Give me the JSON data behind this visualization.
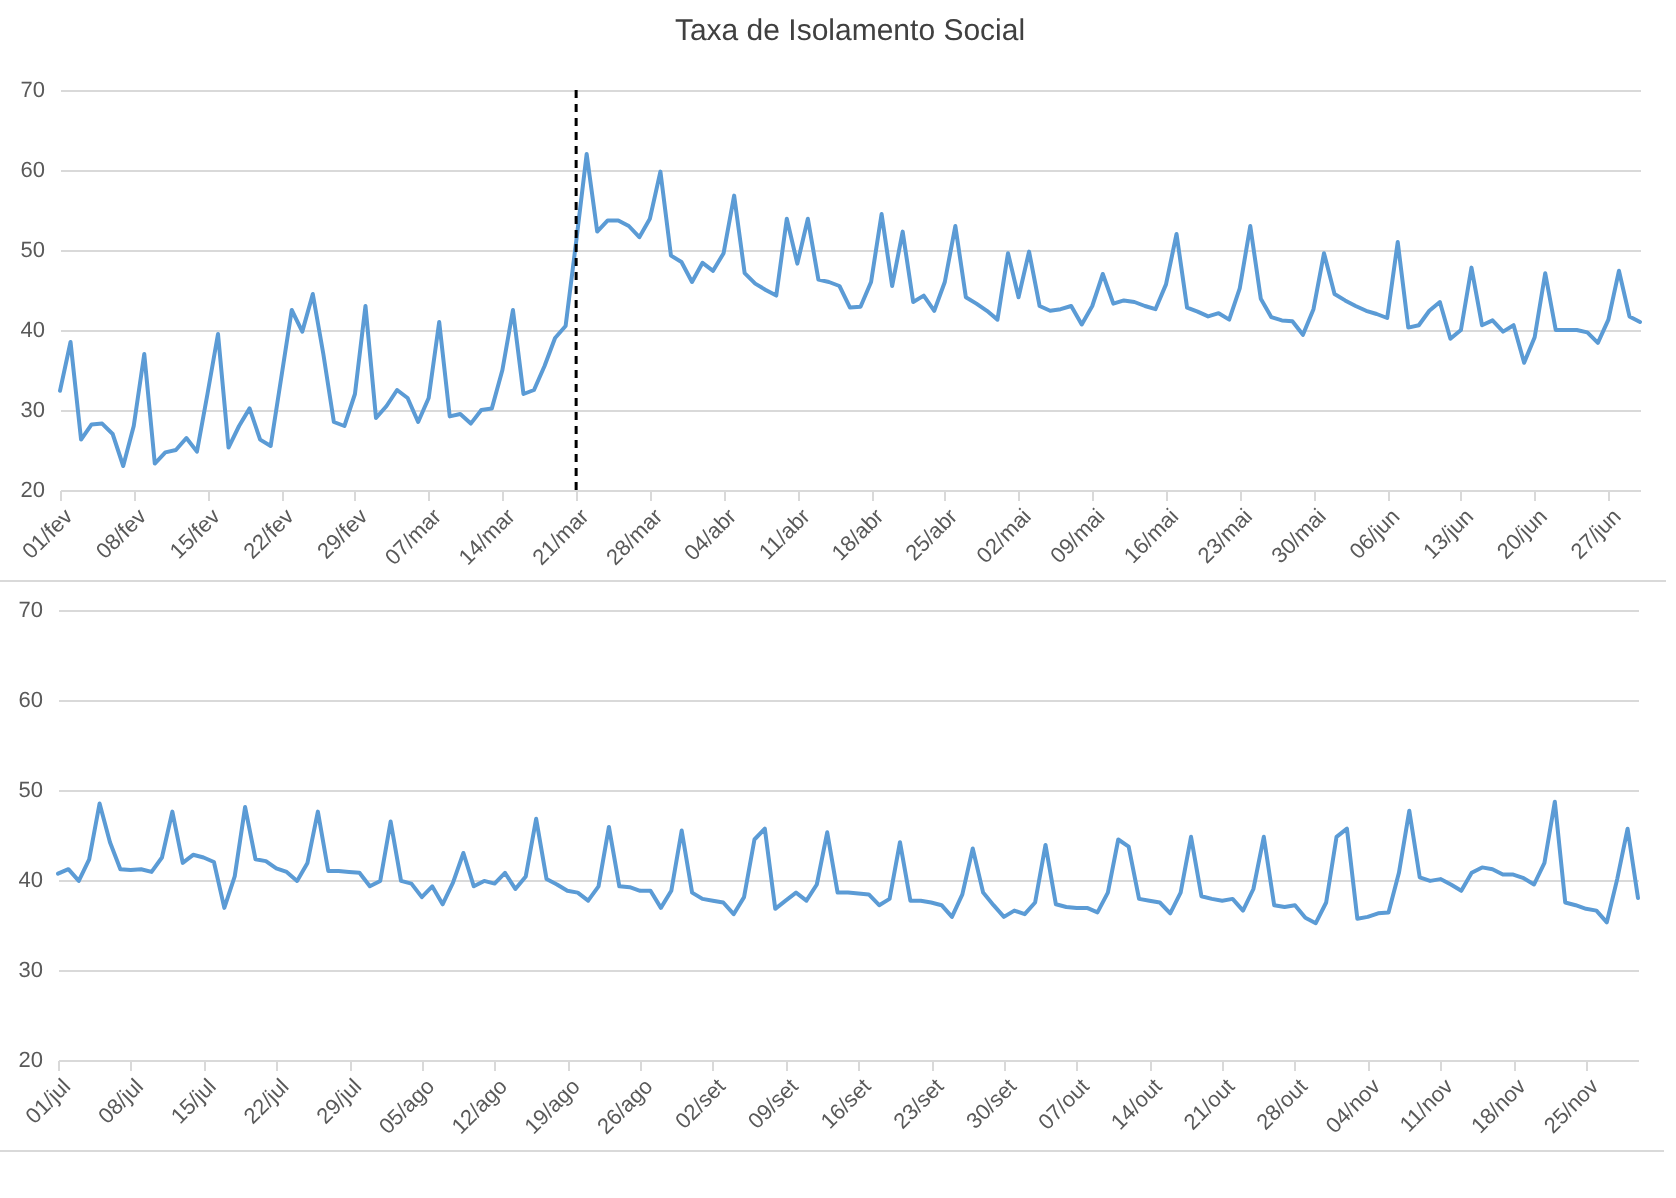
{
  "chart_data": [
    {
      "type": "line",
      "title": "Taxa de Isolamento Social",
      "x": [
        "--02-01",
        "--02-02",
        "--02-03",
        "--02-04",
        "--02-05",
        "--02-06",
        "--02-07",
        "--02-08",
        "--02-09",
        "--02-10",
        "--02-11",
        "--02-12",
        "--02-13",
        "--02-14",
        "--02-15",
        "--02-16",
        "--02-17",
        "--02-18",
        "--02-19",
        "--02-20",
        "--02-21",
        "--02-22",
        "--02-23",
        "--02-24",
        "--02-25",
        "--02-26",
        "--02-27",
        "--02-28",
        "--02-29",
        "--03-01",
        "--03-02",
        "--03-03",
        "--03-04",
        "--03-05",
        "--03-06",
        "--03-07",
        "--03-08",
        "--03-09",
        "--03-10",
        "--03-11",
        "--03-12",
        "--03-13",
        "--03-14",
        "--03-15",
        "--03-16",
        "--03-17",
        "--03-18",
        "--03-19",
        "--03-20",
        "--03-21",
        "--03-22",
        "--03-23",
        "--03-24",
        "--03-25",
        "--03-26",
        "--03-27",
        "--03-28",
        "--03-29",
        "--03-30",
        "--03-31",
        "--04-01",
        "--04-02",
        "--04-03",
        "--04-04",
        "--04-05",
        "--04-06",
        "--04-07",
        "--04-08",
        "--04-09",
        "--04-10",
        "--04-11",
        "--04-12",
        "--04-13",
        "--04-14",
        "--04-15",
        "--04-16",
        "--04-17",
        "--04-18",
        "--04-19",
        "--04-20",
        "--04-21",
        "--04-22",
        "--04-23",
        "--04-24",
        "--04-25",
        "--04-26",
        "--04-27",
        "--04-28",
        "--04-29",
        "--04-30",
        "--05-01",
        "--05-02",
        "--05-03",
        "--05-04",
        "--05-05",
        "--05-06",
        "--05-07",
        "--05-08",
        "--05-09",
        "--05-10",
        "--05-11",
        "--05-12",
        "--05-13",
        "--05-14",
        "--05-15",
        "--05-16",
        "--05-17",
        "--05-18",
        "--05-19",
        "--05-20",
        "--05-21",
        "--05-22",
        "--05-23",
        "--05-24",
        "--05-25",
        "--05-26",
        "--05-27",
        "--05-28",
        "--05-29",
        "--05-30",
        "--05-31",
        "--06-01",
        "--06-02",
        "--06-03",
        "--06-04",
        "--06-05",
        "--06-06",
        "--06-07",
        "--06-08",
        "--06-09",
        "--06-10",
        "--06-11",
        "--06-12",
        "--06-13",
        "--06-14",
        "--06-15",
        "--06-16",
        "--06-17",
        "--06-18",
        "--06-19",
        "--06-20",
        "--06-21",
        "--06-22",
        "--06-23",
        "--06-24",
        "--06-25",
        "--06-26",
        "--06-27",
        "--06-28",
        "--06-29",
        "--06-30"
      ],
      "series": [
        {
          "color": "#5b9bd5",
          "values": [
            32.4,
            38.5,
            26.3,
            28.2,
            28.3,
            27,
            23,
            28,
            37,
            23.3,
            24.7,
            25,
            26.5,
            24.8,
            32,
            39.5,
            25.3,
            28,
            30.2,
            26.3,
            25.5,
            34,
            42.5,
            39.8,
            44.5,
            37,
            28.5,
            28,
            32,
            43,
            29,
            30.5,
            32.5,
            31.5,
            28.5,
            31.5,
            41,
            29.2,
            29.5,
            28.3,
            30,
            30.2,
            35,
            42.5,
            32,
            32.5,
            35.5,
            39,
            40.5,
            51,
            62,
            52.3,
            53.7,
            53.7,
            53,
            51.6,
            53.9,
            59.8,
            49.3,
            48.5,
            46,
            48.4,
            47.4,
            49.6,
            56.8,
            47.1,
            45.8,
            45,
            44.3,
            53.9,
            48.3,
            53.9,
            46.3,
            46,
            45.5,
            42.8,
            42.9,
            46,
            54.5,
            45.5,
            52.3,
            43.5,
            44.3,
            42.4,
            46,
            53,
            44.1,
            43.3,
            42.4,
            41.3,
            49.6,
            44.1,
            49.8,
            43,
            42.4,
            42.6,
            43,
            40.7,
            43,
            47,
            43.3,
            43.7,
            43.5,
            43,
            42.6,
            45.7,
            52,
            42.8,
            42.3,
            41.7,
            42.1,
            41.3,
            45.2,
            53,
            43.9,
            41.6,
            41.2,
            41.1,
            39.4,
            42.6,
            49.6,
            44.5,
            43.7,
            43,
            42.4,
            42,
            41.5,
            51,
            40.3,
            40.6,
            42.4,
            43.5,
            38.9,
            40,
            47.8,
            40.6,
            41.2,
            39.8,
            40.6,
            35.9,
            39.1,
            47.1,
            40,
            40,
            40,
            39.7,
            38.4,
            41.3,
            47.4,
            41.7,
            41
          ]
        }
      ],
      "xlim": [
        "--02-01",
        "--06-30"
      ],
      "xticks": [
        {
          "value": "--02-01",
          "label": "01/fev"
        },
        {
          "value": "--02-08",
          "label": "08/fev"
        },
        {
          "value": "--02-15",
          "label": "15/fev"
        },
        {
          "value": "--02-22",
          "label": "22/fev"
        },
        {
          "value": "--02-29",
          "label": "29/fev"
        },
        {
          "value": "--03-07",
          "label": "07/mar"
        },
        {
          "value": "--03-14",
          "label": "14/mar"
        },
        {
          "value": "--03-21",
          "label": "21/mar"
        },
        {
          "value": "--03-28",
          "label": "28/mar"
        },
        {
          "value": "--04-04",
          "label": "04/abr"
        },
        {
          "value": "--04-11",
          "label": "11/abr"
        },
        {
          "value": "--04-18",
          "label": "18/abr"
        },
        {
          "value": "--04-25",
          "label": "25/abr"
        },
        {
          "value": "--05-02",
          "label": "02/mai"
        },
        {
          "value": "--05-09",
          "label": "09/mai"
        },
        {
          "value": "--05-16",
          "label": "16/mai"
        },
        {
          "value": "--05-23",
          "label": "23/mai"
        },
        {
          "value": "--05-30",
          "label": "30/mai"
        },
        {
          "value": "--06-06",
          "label": "06/jun"
        },
        {
          "value": "--06-13",
          "label": "13/jun"
        },
        {
          "value": "--06-20",
          "label": "20/jun"
        },
        {
          "value": "--06-27",
          "label": "27/jun"
        }
      ],
      "ylim": [
        20,
        70
      ],
      "yticks": [
        20,
        30,
        40,
        50,
        60,
        70
      ],
      "grid": "y",
      "ref_lines": [
        {
          "axis": "x",
          "value": "--03-21",
          "color": "#000000",
          "line_style": "dashed"
        }
      ]
    },
    {
      "type": "line",
      "x": [
        "--07-01",
        "--07-02",
        "--07-03",
        "--07-04",
        "--07-05",
        "--07-06",
        "--07-07",
        "--07-08",
        "--07-09",
        "--07-10",
        "--07-11",
        "--07-12",
        "--07-13",
        "--07-14",
        "--07-15",
        "--07-16",
        "--07-17",
        "--07-18",
        "--07-19",
        "--07-20",
        "--07-21",
        "--07-22",
        "--07-23",
        "--07-24",
        "--07-25",
        "--07-26",
        "--07-27",
        "--07-28",
        "--07-29",
        "--07-30",
        "--07-31",
        "--08-01",
        "--08-02",
        "--08-03",
        "--08-04",
        "--08-05",
        "--08-06",
        "--08-07",
        "--08-08",
        "--08-09",
        "--08-10",
        "--08-11",
        "--08-12",
        "--08-13",
        "--08-14",
        "--08-15",
        "--08-16",
        "--08-17",
        "--08-18",
        "--08-19",
        "--08-20",
        "--08-21",
        "--08-22",
        "--08-23",
        "--08-24",
        "--08-25",
        "--08-26",
        "--08-27",
        "--08-28",
        "--08-29",
        "--08-30",
        "--08-31",
        "--09-01",
        "--09-02",
        "--09-03",
        "--09-04",
        "--09-05",
        "--09-06",
        "--09-07",
        "--09-08",
        "--09-09",
        "--09-10",
        "--09-11",
        "--09-12",
        "--09-13",
        "--09-14",
        "--09-15",
        "--09-16",
        "--09-17",
        "--09-18",
        "--09-19",
        "--09-20",
        "--09-21",
        "--09-22",
        "--09-23",
        "--09-24",
        "--09-25",
        "--09-26",
        "--09-27",
        "--09-28",
        "--09-29",
        "--09-30",
        "--10-01",
        "--10-02",
        "--10-03",
        "--10-04",
        "--10-05",
        "--10-06",
        "--10-07",
        "--10-08",
        "--10-09",
        "--10-10",
        "--10-11",
        "--10-12",
        "--10-13",
        "--10-14",
        "--10-15",
        "--10-16",
        "--10-17",
        "--10-18",
        "--10-19",
        "--10-20",
        "--10-21",
        "--10-22",
        "--10-23",
        "--10-24",
        "--10-25",
        "--10-26",
        "--10-27",
        "--10-28",
        "--10-29",
        "--10-30",
        "--10-31",
        "--11-01",
        "--11-02",
        "--11-03",
        "--11-04",
        "--11-05",
        "--11-06",
        "--11-07",
        "--11-08",
        "--11-09",
        "--11-10",
        "--11-11",
        "--11-12",
        "--11-13",
        "--11-14",
        "--11-15",
        "--11-16",
        "--11-17",
        "--11-18",
        "--11-19",
        "--11-20",
        "--11-21",
        "--11-22",
        "--11-23",
        "--11-24",
        "--11-25",
        "--11-26",
        "--11-27",
        "--11-28",
        "--11-29",
        "--11-30"
      ],
      "series": [
        {
          "color": "#5b9bd5",
          "values": [
            40.7,
            41.2,
            39.9,
            42.3,
            48.5,
            44.2,
            41.2,
            41.1,
            41.2,
            40.9,
            42.5,
            47.6,
            41.9,
            42.8,
            42.5,
            42,
            36.9,
            40.4,
            48.1,
            42.3,
            42.1,
            41.3,
            40.9,
            39.9,
            41.9,
            47.6,
            41,
            41,
            40.9,
            40.8,
            39.3,
            39.9,
            46.5,
            39.9,
            39.6,
            38.1,
            39.3,
            37.3,
            39.7,
            43,
            39.3,
            39.9,
            39.6,
            40.8,
            39,
            40.4,
            46.8,
            40.1,
            39.5,
            38.8,
            38.6,
            37.7,
            39.3,
            45.9,
            39.3,
            39.2,
            38.8,
            38.8,
            36.9,
            38.8,
            45.5,
            38.6,
            37.9,
            37.7,
            37.5,
            36.2,
            38.1,
            44.5,
            45.7,
            36.8,
            37.7,
            38.6,
            37.7,
            39.5,
            45.3,
            38.6,
            38.6,
            38.5,
            38.4,
            37.2,
            37.9,
            44.2,
            37.7,
            37.7,
            37.5,
            37.2,
            35.9,
            38.4,
            43.5,
            38.6,
            37.2,
            35.9,
            36.6,
            36.2,
            37.5,
            43.9,
            37.3,
            37,
            36.9,
            36.9,
            36.4,
            38.6,
            44.5,
            43.7,
            37.9,
            37.7,
            37.5,
            36.3,
            38.6,
            44.8,
            38.2,
            37.9,
            37.7,
            37.9,
            36.6,
            39,
            44.8,
            37.2,
            37,
            37.2,
            35.8,
            35.2,
            37.5,
            44.8,
            45.7,
            35.7,
            35.9,
            36.3,
            36.4,
            40.8,
            47.7,
            40.3,
            39.9,
            40.1,
            39.5,
            38.8,
            40.8,
            41.4,
            41.2,
            40.6,
            40.6,
            40.2,
            39.5,
            41.9,
            48.7,
            37.5,
            37.2,
            36.8,
            36.6,
            35.3,
            40.1,
            45.7,
            38
          ]
        }
      ],
      "xlim": [
        "--07-01",
        "--11-30"
      ],
      "xticks": [
        {
          "value": "--07-01",
          "label": "01/jul"
        },
        {
          "value": "--07-08",
          "label": "08/jul"
        },
        {
          "value": "--07-15",
          "label": "15/jul"
        },
        {
          "value": "--07-22",
          "label": "22/jul"
        },
        {
          "value": "--07-29",
          "label": "29/jul"
        },
        {
          "value": "--08-05",
          "label": "05/ago"
        },
        {
          "value": "--08-12",
          "label": "12/ago"
        },
        {
          "value": "--08-19",
          "label": "19/ago"
        },
        {
          "value": "--08-26",
          "label": "26/ago"
        },
        {
          "value": "--09-02",
          "label": "02/set"
        },
        {
          "value": "--09-09",
          "label": "09/set"
        },
        {
          "value": "--09-16",
          "label": "16/set"
        },
        {
          "value": "--09-23",
          "label": "23/set"
        },
        {
          "value": "--09-30",
          "label": "30/set"
        },
        {
          "value": "--10-07",
          "label": "07/out"
        },
        {
          "value": "--10-14",
          "label": "14/out"
        },
        {
          "value": "--10-21",
          "label": "21/out"
        },
        {
          "value": "--10-28",
          "label": "28/out"
        },
        {
          "value": "--11-04",
          "label": "04/nov"
        },
        {
          "value": "--11-11",
          "label": "11/nov"
        },
        {
          "value": "--11-18",
          "label": "18/nov"
        },
        {
          "value": "--11-25",
          "label": "25/nov"
        }
      ],
      "ylim": [
        20,
        70
      ],
      "yticks": [
        20,
        30,
        40,
        50,
        60,
        70
      ],
      "grid": "y"
    }
  ]
}
